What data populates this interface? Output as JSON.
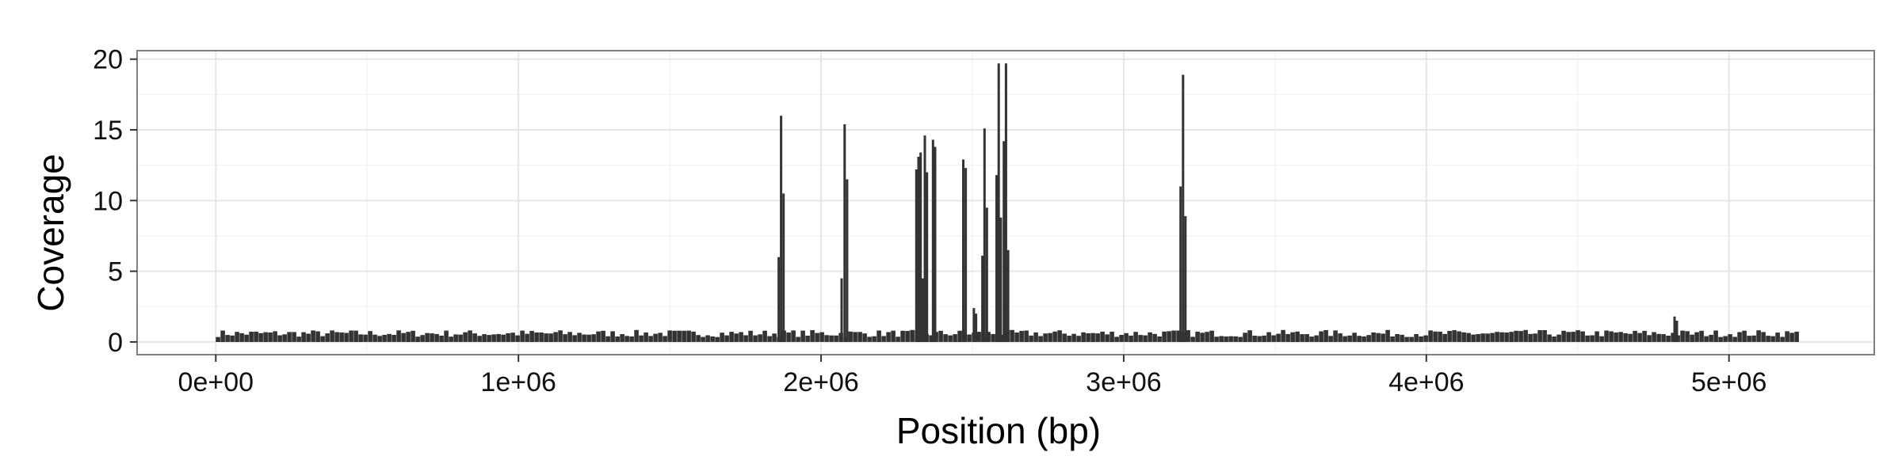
{
  "chart_data": {
    "type": "bar",
    "title": "",
    "xlabel": "Position (bp)",
    "ylabel": "Coverage",
    "xlim": [
      -260000,
      5480000
    ],
    "ylim": [
      -0.9,
      20.6
    ],
    "grid": true,
    "x_ticks": [
      {
        "value": 0,
        "label": "0e+00"
      },
      {
        "value": 1000000,
        "label": "1e+06"
      },
      {
        "value": 2000000,
        "label": "2e+06"
      },
      {
        "value": 3000000,
        "label": "3e+06"
      },
      {
        "value": 4000000,
        "label": "4e+06"
      },
      {
        "value": 5000000,
        "label": "5e+06"
      }
    ],
    "y_ticks": [
      {
        "value": 0,
        "label": "0"
      },
      {
        "value": 5,
        "label": "5"
      },
      {
        "value": 10,
        "label": "10"
      },
      {
        "value": 15,
        "label": "15"
      },
      {
        "value": 20,
        "label": "20"
      }
    ],
    "baseline": {
      "x_start": 0,
      "x_end": 5230000,
      "value": 0.6
    },
    "peaks": [
      {
        "x": 1860000,
        "value": 6.0
      },
      {
        "x": 1868000,
        "value": 16.0
      },
      {
        "x": 1876000,
        "value": 10.5
      },
      {
        "x": 2068000,
        "value": 4.5
      },
      {
        "x": 2078000,
        "value": 15.4
      },
      {
        "x": 2086000,
        "value": 11.5
      },
      {
        "x": 2315000,
        "value": 12.2
      },
      {
        "x": 2322000,
        "value": 13.1
      },
      {
        "x": 2329000,
        "value": 13.4
      },
      {
        "x": 2336000,
        "value": 4.5
      },
      {
        "x": 2343000,
        "value": 14.6
      },
      {
        "x": 2350000,
        "value": 12.0
      },
      {
        "x": 2370000,
        "value": 14.3
      },
      {
        "x": 2377000,
        "value": 13.8
      },
      {
        "x": 2470000,
        "value": 12.9
      },
      {
        "x": 2478000,
        "value": 12.3
      },
      {
        "x": 2505000,
        "value": 2.4
      },
      {
        "x": 2512000,
        "value": 2.0
      },
      {
        "x": 2533000,
        "value": 6.1
      },
      {
        "x": 2540000,
        "value": 15.1
      },
      {
        "x": 2548000,
        "value": 9.5
      },
      {
        "x": 2580000,
        "value": 11.8
      },
      {
        "x": 2587000,
        "value": 19.7
      },
      {
        "x": 2594000,
        "value": 8.8
      },
      {
        "x": 2604000,
        "value": 14.2
      },
      {
        "x": 2611000,
        "value": 19.7
      },
      {
        "x": 2618000,
        "value": 6.5
      },
      {
        "x": 3188000,
        "value": 11.0
      },
      {
        "x": 3196000,
        "value": 18.9
      },
      {
        "x": 3204000,
        "value": 8.9
      },
      {
        "x": 4820000,
        "value": 1.8
      },
      {
        "x": 4828000,
        "value": 1.5
      }
    ]
  }
}
